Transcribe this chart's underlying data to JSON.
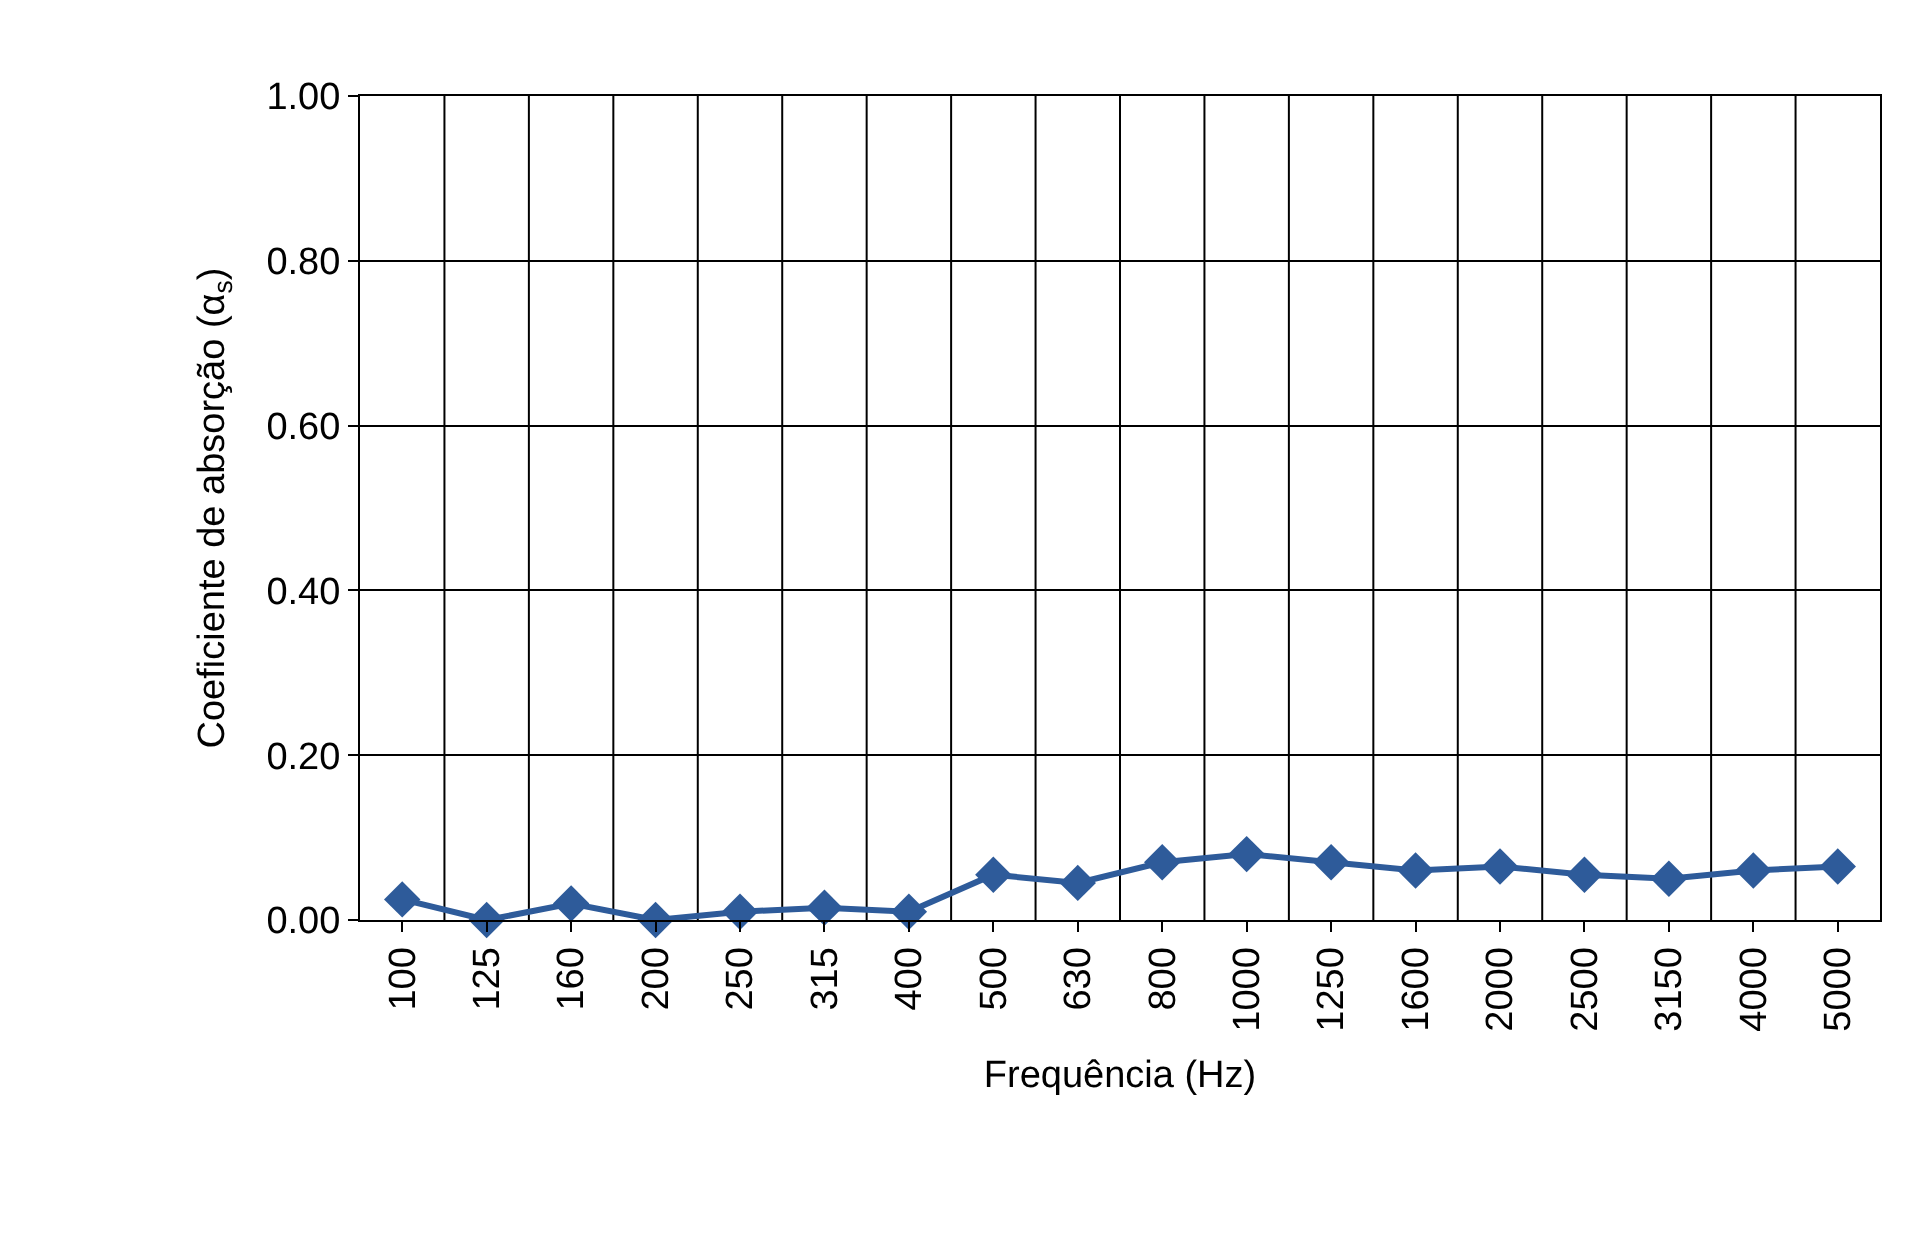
{
  "chart_data": {
    "type": "line",
    "xlabel": "Frequência (Hz)",
    "ylabel": "Coeficiente de absorção (α$_{s}$)",
    "categories": [
      "100",
      "125",
      "160",
      "200",
      "250",
      "315",
      "400",
      "500",
      "630",
      "800",
      "1000",
      "1250",
      "1600",
      "2000",
      "2500",
      "3150",
      "4000",
      "5000"
    ],
    "series": [
      {
        "color": "#2e5b9a",
        "values": [
          0.025,
          0.0,
          0.02,
          0.0,
          0.01,
          0.015,
          0.01,
          0.055,
          0.045,
          0.07,
          0.08,
          0.07,
          0.06,
          0.065,
          0.055,
          0.05,
          0.06,
          0.065
        ]
      }
    ],
    "ylim": [
      0,
      1
    ],
    "yticks": [
      {
        "value": 0,
        "label": "0.00"
      },
      {
        "value": 0.2,
        "label": "0.20"
      },
      {
        "value": 0.4,
        "label": "0.40"
      },
      {
        "value": 0.6,
        "label": "0.60"
      },
      {
        "value": 0.8,
        "label": "0.80"
      },
      {
        "value": 1,
        "label": "1.00"
      }
    ],
    "grid": true,
    "marker": "diamond",
    "line_style": "solid",
    "legend": false
  }
}
